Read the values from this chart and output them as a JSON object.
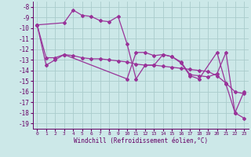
{
  "xlabel": "Windchill (Refroidissement éolien,°C)",
  "background_color": "#cce8e8",
  "grid_color": "#aacccc",
  "line_color": "#993399",
  "ylim": [
    -19.5,
    -7.5
  ],
  "xlim": [
    -0.5,
    23.5
  ],
  "yticks": [
    -8,
    -9,
    -10,
    -11,
    -12,
    -13,
    -14,
    -15,
    -16,
    -17,
    -18,
    -19
  ],
  "xticks": [
    0,
    1,
    2,
    3,
    4,
    5,
    6,
    7,
    8,
    9,
    10,
    11,
    12,
    13,
    14,
    15,
    16,
    17,
    18,
    19,
    20,
    21,
    22,
    23
  ],
  "series1_x": [
    0,
    3,
    4,
    5,
    6,
    7,
    8,
    9,
    10,
    11,
    12,
    13,
    14,
    15,
    16,
    17,
    18,
    19,
    20,
    21,
    22,
    23
  ],
  "series1_y": [
    -9.7,
    -9.5,
    -8.3,
    -8.8,
    -8.9,
    -9.3,
    -9.4,
    -8.9,
    -11.5,
    -14.8,
    -13.5,
    -13.5,
    -12.5,
    -12.7,
    -13.2,
    -14.4,
    -14.5,
    -14.6,
    -14.3,
    -12.3,
    -18.0,
    -18.5
  ],
  "series2_x": [
    0,
    1,
    2,
    3,
    4,
    5,
    6,
    7,
    8,
    9,
    10,
    11,
    12,
    13,
    14,
    15,
    16,
    17,
    18,
    19,
    20,
    21,
    22,
    23
  ],
  "series2_y": [
    -9.7,
    -12.8,
    -12.8,
    -12.5,
    -12.6,
    -12.8,
    -12.9,
    -12.9,
    -13.0,
    -13.1,
    -13.2,
    -13.4,
    -13.5,
    -13.5,
    -13.6,
    -13.7,
    -13.8,
    -13.9,
    -14.0,
    -14.1,
    -14.5,
    -15.2,
    -16.0,
    -16.2
  ],
  "series3_x": [
    0,
    1,
    2,
    3,
    10,
    11,
    12,
    13,
    14,
    15,
    16,
    17,
    18,
    20,
    21,
    22,
    23
  ],
  "series3_y": [
    -9.7,
    -13.5,
    -13.0,
    -12.5,
    -14.8,
    -12.3,
    -12.3,
    -12.6,
    -12.5,
    -12.7,
    -13.3,
    -14.5,
    -14.8,
    -12.3,
    -15.3,
    -18.0,
    -16.0
  ],
  "tick_fontsize": 5.5,
  "xlabel_fontsize": 5.5,
  "tick_color": "#660066",
  "spine_color": "#660066"
}
